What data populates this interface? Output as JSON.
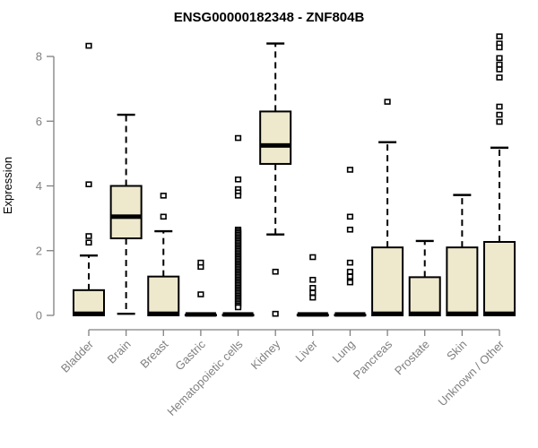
{
  "chart_data": {
    "type": "boxplot",
    "title": "ENSG00000182348 - ZNF804B",
    "ylabel": "Expression",
    "xlabel": "",
    "ylim": [
      0,
      8.7
    ],
    "yticks": [
      0,
      2,
      4,
      6,
      8
    ],
    "grid": false,
    "legend": "none",
    "categories": [
      "Bladder",
      "Brain",
      "Breast",
      "Gastric",
      "Hematopoietic cells",
      "Kidney",
      "Liver",
      "Lung",
      "Pancreas",
      "Prostate",
      "Skin",
      "Unknown / Other"
    ],
    "series": [
      {
        "category": "Bladder",
        "whisker_low": 0,
        "q1": 0,
        "median": 0.05,
        "q3": 0.78,
        "whisker_high": 1.85,
        "outliers": [
          2.25,
          2.45,
          4.05,
          8.33
        ]
      },
      {
        "category": "Brain",
        "whisker_low": 0.05,
        "q1": 2.38,
        "median": 3.05,
        "q3": 4.0,
        "whisker_high": 6.2,
        "outliers": []
      },
      {
        "category": "Breast",
        "whisker_low": 0,
        "q1": 0,
        "median": 0.05,
        "q3": 1.2,
        "whisker_high": 2.6,
        "outliers": [
          3.05,
          3.7
        ]
      },
      {
        "category": "Gastric",
        "whisker_low": 0,
        "q1": 0,
        "median": 0.03,
        "q3": 0.02,
        "whisker_high": 0.02,
        "outliers": [
          0.65,
          1.5,
          1.63
        ]
      },
      {
        "category": "Hematopoietic cells",
        "whisker_low": 0,
        "q1": 0,
        "median": 0.03,
        "q3": 0.02,
        "whisker_high": 0.02,
        "outliers": [
          5.48,
          4.2,
          3.9,
          3.8,
          3.7,
          2.65,
          2.6,
          2.55,
          2.5,
          2.45,
          2.4,
          2.35,
          2.3,
          2.25,
          2.2,
          2.15,
          2.1,
          2.05,
          2.0,
          1.95,
          1.9,
          1.85,
          1.8,
          1.75,
          1.7,
          1.65,
          1.6,
          1.55,
          1.5,
          1.45,
          1.4,
          1.35,
          1.3,
          1.25,
          1.2,
          1.15,
          1.1,
          1.05,
          1.0,
          0.95,
          0.9,
          0.85,
          0.8,
          0.75,
          0.7,
          0.65,
          0.6,
          0.55,
          0.5,
          0.45,
          0.4,
          0.35,
          0.3,
          0.25
        ]
      },
      {
        "category": "Kidney",
        "whisker_low": 2.5,
        "q1": 4.68,
        "median": 5.25,
        "q3": 6.3,
        "whisker_high": 8.4,
        "outliers": [
          1.35,
          0.05
        ]
      },
      {
        "category": "Liver",
        "whisker_low": 0,
        "q1": 0,
        "median": 0.03,
        "q3": 0.02,
        "whisker_high": 0.02,
        "outliers": [
          1.8,
          1.1,
          0.85,
          0.7,
          0.55
        ]
      },
      {
        "category": "Lung",
        "whisker_low": 0,
        "q1": 0,
        "median": 0.03,
        "q3": 0.02,
        "whisker_high": 0.02,
        "outliers": [
          4.5,
          3.05,
          2.65,
          1.63,
          1.35,
          1.2,
          1.02
        ]
      },
      {
        "category": "Pancreas",
        "whisker_low": 0,
        "q1": 0,
        "median": 0.05,
        "q3": 2.1,
        "whisker_high": 5.35,
        "outliers": [
          6.6
        ]
      },
      {
        "category": "Prostate",
        "whisker_low": 0,
        "q1": 0,
        "median": 0.05,
        "q3": 1.18,
        "whisker_high": 2.3,
        "outliers": []
      },
      {
        "category": "Skin",
        "whisker_low": 0,
        "q1": 0,
        "median": 0.05,
        "q3": 2.1,
        "whisker_high": 3.72,
        "outliers": []
      },
      {
        "category": "Unknown / Other",
        "whisker_low": 0,
        "q1": 0,
        "median": 0.05,
        "q3": 2.27,
        "whisker_high": 5.18,
        "outliers": [
          8.62,
          8.4,
          8.28,
          7.95,
          7.75,
          7.6,
          7.35,
          6.45,
          6.2,
          5.98
        ]
      }
    ],
    "colors": {
      "box_fill": "#EEE8CD",
      "box_stroke": "#000000",
      "median": "#000000",
      "whisker": "#000000",
      "outlier_stroke": "#000000",
      "outlier_fill": "#FFFFFF",
      "axis": "#808080",
      "tick_label": "#808080",
      "title": "#000000",
      "background": "#FFFFFF"
    }
  }
}
